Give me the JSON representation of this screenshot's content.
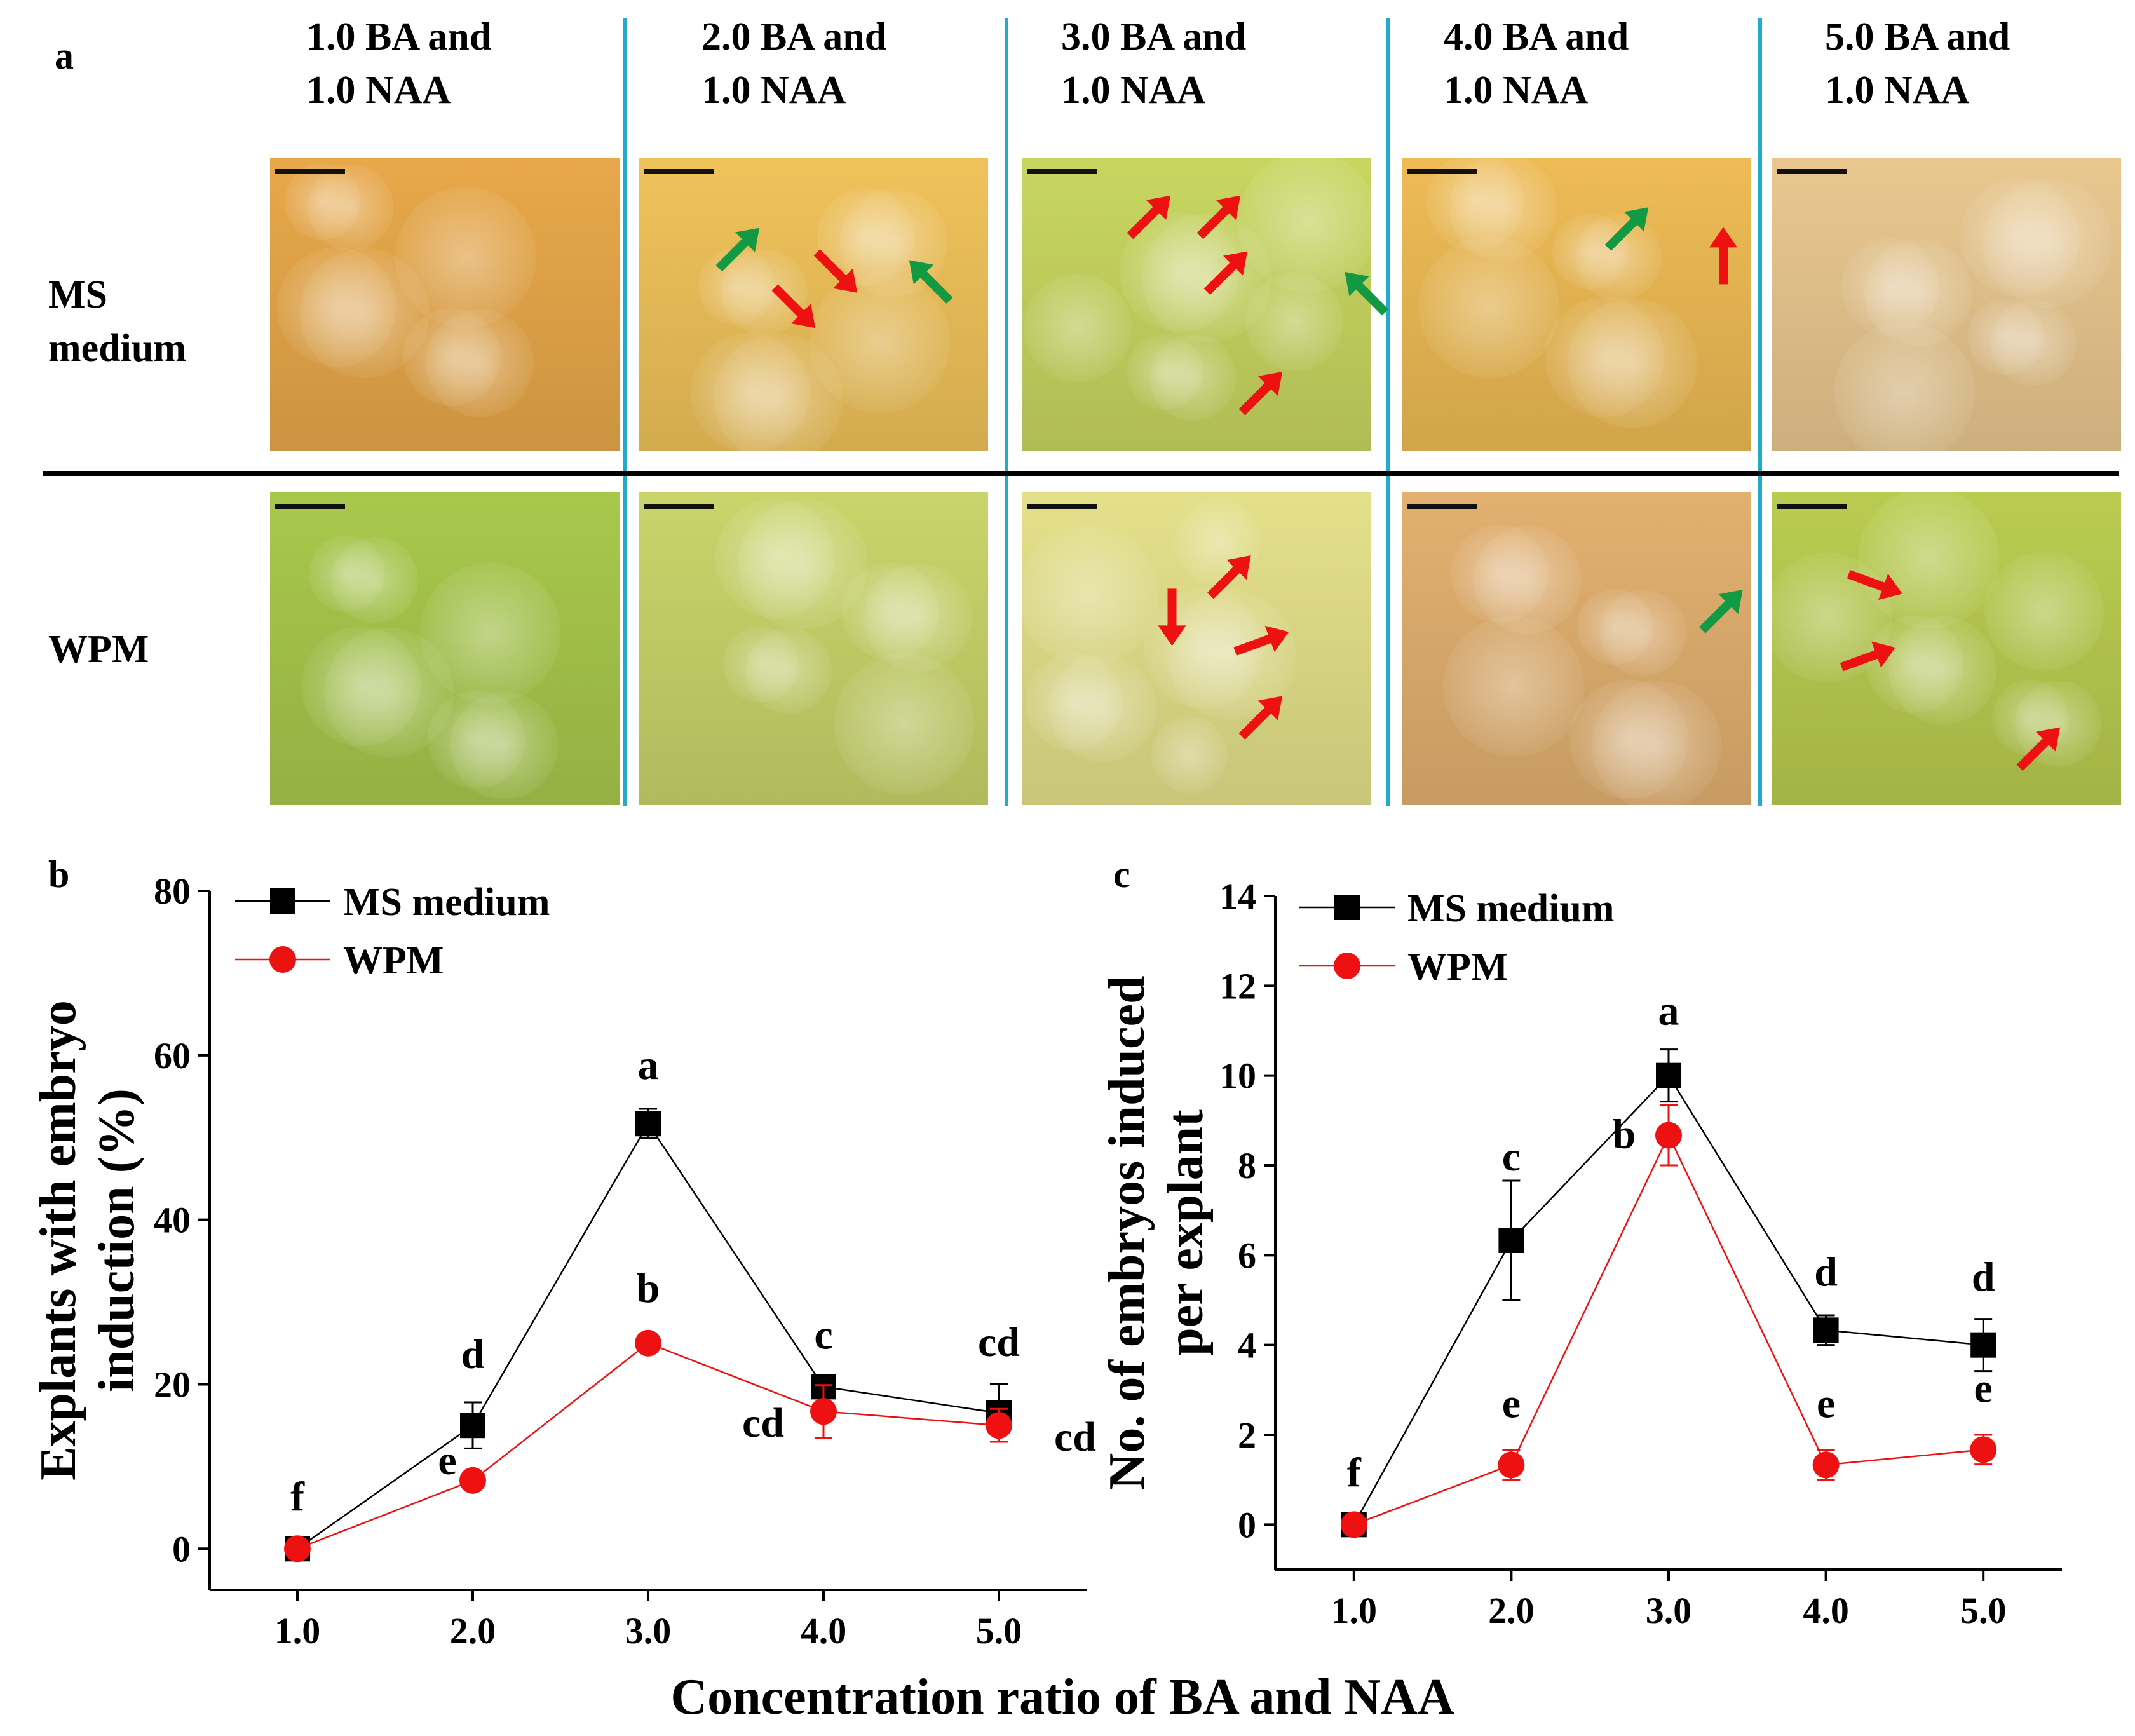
{
  "figure": {
    "panel_labels": {
      "a": "a",
      "b": "b",
      "c": "c"
    },
    "column_headers": [
      {
        "line1": "1.0 BA  and",
        "line2": "1.0 NAA"
      },
      {
        "line1": "2.0 BA and",
        "line2": "1.0 NAA"
      },
      {
        "line1": "3.0 BA and",
        "line2": "1.0 NAA"
      },
      {
        "line1": "4.0 BA and",
        "line2": "1.0 NAA"
      },
      {
        "line1": "5.0 BA and",
        "line2": "1.0 NAA"
      }
    ],
    "row_labels": [
      {
        "line1": "MS",
        "line2": "medium"
      },
      {
        "line1": "WPM",
        "line2": ""
      }
    ],
    "photo_colors": {
      "ms": [
        "#e8a84a",
        "#f0c25a",
        "#c8d660",
        "#eebb55",
        "#e9c78f"
      ],
      "wpm": [
        "#a8c84c",
        "#c9d46a",
        "#e4e08a",
        "#e2b070",
        "#b9cc50"
      ]
    },
    "arrow_colors": {
      "red": "#ee1111",
      "green": "#119944"
    },
    "shared_xlabel": "Concentration ratio of BA and NAA"
  },
  "chart_data": [
    {
      "type": "line",
      "panel": "b",
      "title": "",
      "xlabel": "Concentration ratio of BA and NAA",
      "ylabel_lines": [
        "Explants with embryo",
        "induction (%)"
      ],
      "x": [
        1.0,
        2.0,
        3.0,
        4.0,
        5.0
      ],
      "x_tick_labels": [
        "1.0",
        "2.0",
        "3.0",
        "4.0",
        "5.0"
      ],
      "xlim": [
        0.5,
        5.5
      ],
      "ylim": [
        -5,
        80
      ],
      "y_ticks": [
        0,
        20,
        40,
        60,
        80
      ],
      "series": [
        {
          "name": "MS medium",
          "color": "#000000",
          "marker": "square",
          "values": [
            0,
            15,
            51.7,
            19.7,
            16.5
          ],
          "errors": [
            0,
            2.8,
            1.8,
            0,
            3.5
          ],
          "letters": [
            "",
            "d",
            "a",
            "c",
            "cd"
          ]
        },
        {
          "name": "WPM",
          "color": "#ee1111",
          "marker": "circle",
          "values": [
            0,
            8.3,
            25,
            16.7,
            15
          ],
          "errors": [
            0,
            0,
            0,
            3.2,
            2.0
          ],
          "letters": [
            "f",
            "e",
            "b",
            "cd",
            "cd"
          ]
        }
      ],
      "legend_position": "top-left"
    },
    {
      "type": "line",
      "panel": "c",
      "title": "",
      "xlabel": "Concentration ratio of BA and NAA",
      "ylabel_lines": [
        "No. of embryos induced",
        "per explant"
      ],
      "x": [
        1.0,
        2.0,
        3.0,
        4.0,
        5.0
      ],
      "x_tick_labels": [
        "1.0",
        "2.0",
        "3.0",
        "4.0",
        "5.0"
      ],
      "xlim": [
        0.5,
        5.5
      ],
      "ylim": [
        -1,
        14
      ],
      "y_ticks": [
        0,
        2,
        4,
        6,
        8,
        10,
        12,
        14
      ],
      "series": [
        {
          "name": "MS medium",
          "color": "#000000",
          "marker": "square",
          "values": [
            0,
            6.33,
            10.0,
            4.33,
            4.0
          ],
          "errors": [
            0,
            1.33,
            0.58,
            0.33,
            0.58
          ],
          "letters": [
            "",
            "c",
            "a",
            "d",
            "d"
          ]
        },
        {
          "name": "WPM",
          "color": "#ee1111",
          "marker": "circle",
          "values": [
            0,
            1.33,
            8.67,
            1.33,
            1.67
          ],
          "errors": [
            0,
            0.33,
            0.67,
            0.33,
            0.33
          ],
          "letters": [
            "f",
            "e",
            "b",
            "e",
            "e"
          ]
        }
      ],
      "legend_position": "top-left"
    }
  ]
}
